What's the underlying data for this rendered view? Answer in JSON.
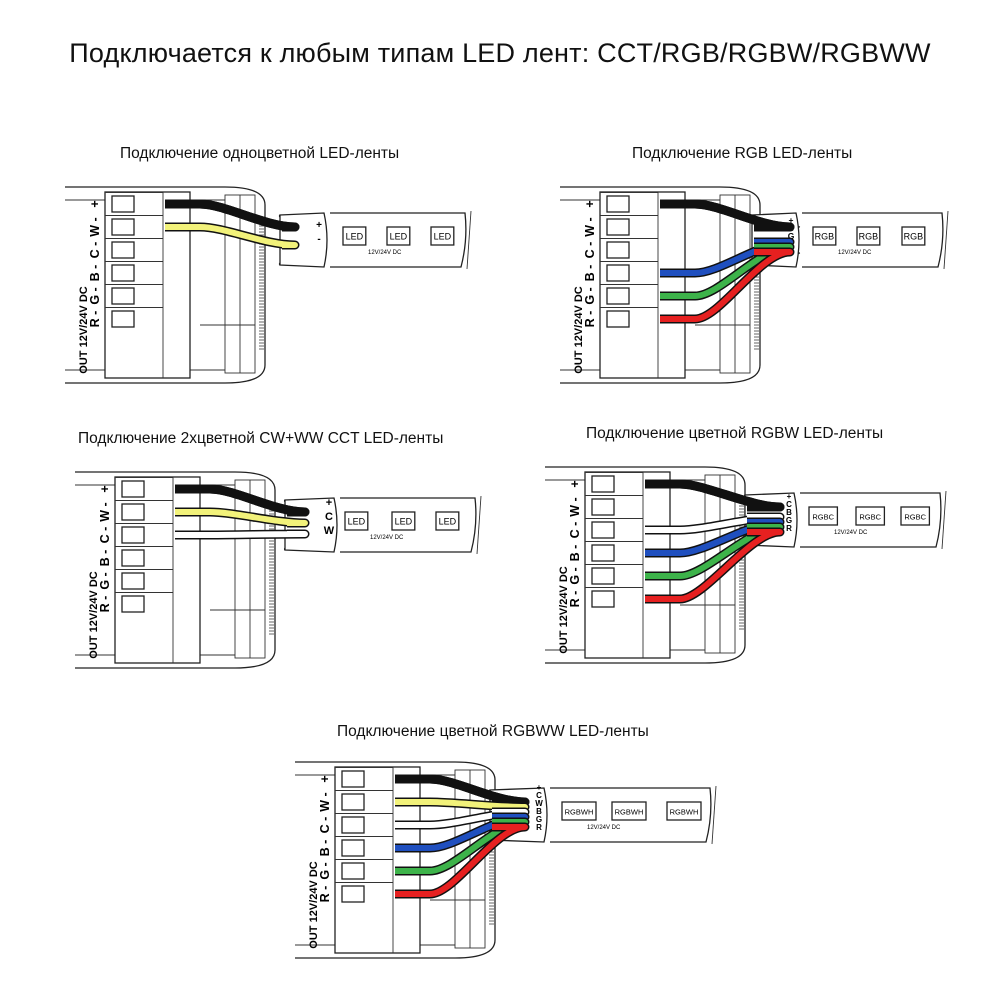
{
  "title": "Подключается к любым типам LED лент: CCT/RGB/RGBW/RGBWW",
  "controller": {
    "side_label": "OUT 12V/24V DC",
    "terminal_labels": [
      "+",
      "W -",
      "C -",
      "B -",
      "G -",
      "R -"
    ]
  },
  "strip_voltage": "12V/24V DC",
  "colors": {
    "black": "#111111",
    "yellow": "#f2f27a",
    "white": "#ffffff",
    "blue": "#1f4fbf",
    "green": "#3db34a",
    "red": "#e62020"
  },
  "panels": [
    {
      "id": "single",
      "title": "Подключение одноцветной LED-ленты",
      "connector_pins": [
        "+",
        "-"
      ],
      "led_label": "LED",
      "wires": [
        "black",
        "yellow"
      ]
    },
    {
      "id": "rgb",
      "title": "Подключение RGB LED-ленты",
      "connector_pins": [
        "+",
        "B",
        "G",
        "R"
      ],
      "led_label": "RGB",
      "wires": [
        "black",
        "blue",
        "green",
        "red"
      ]
    },
    {
      "id": "cct",
      "title": "Подключение 2хцветной CW+WW CCT LED-ленты",
      "connector_pins": [
        "+",
        "C",
        "W"
      ],
      "led_label": "LED",
      "wires": [
        "black",
        "yellow",
        "white"
      ]
    },
    {
      "id": "rgbw",
      "title": "Подключение цветной RGBW LED-ленты",
      "connector_pins": [
        "+",
        "C",
        "B",
        "G",
        "R"
      ],
      "led_label": "RGBC",
      "wires": [
        "black",
        "white",
        "blue",
        "green",
        "red"
      ]
    },
    {
      "id": "rgbww",
      "title": "Подключение цветной RGBWW LED-ленты",
      "connector_pins": [
        "+",
        "C",
        "W",
        "B",
        "G",
        "R"
      ],
      "led_label": "RGBWH",
      "wires": [
        "black",
        "yellow",
        "white",
        "blue",
        "green",
        "red"
      ]
    }
  ]
}
